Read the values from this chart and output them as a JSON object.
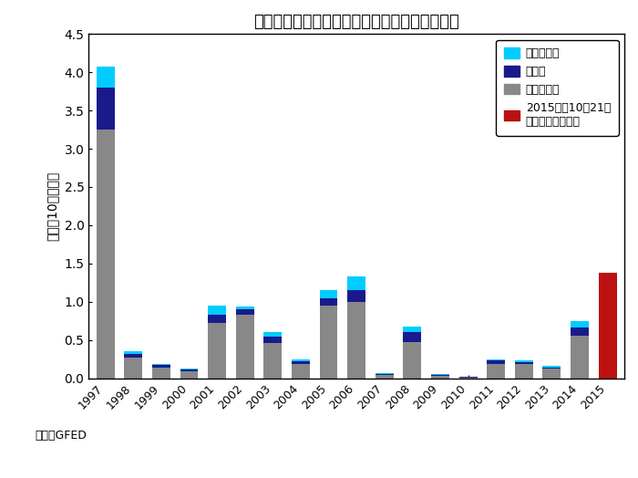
{
  "title": "インドネシアの火災による温室効果ガス排出量",
  "ylabel": "単位（10億トン）",
  "source_label": "出展：GFED",
  "years": [
    1997,
    1998,
    1999,
    2000,
    2001,
    2002,
    2003,
    2004,
    2005,
    2006,
    2007,
    2008,
    2009,
    2010,
    2011,
    2012,
    2013,
    2014,
    2015
  ],
  "co2": [
    3.25,
    0.27,
    0.14,
    0.09,
    0.72,
    0.83,
    0.46,
    0.19,
    0.95,
    1.0,
    0.04,
    0.47,
    0.03,
    0.01,
    0.19,
    0.18,
    0.12,
    0.56,
    0.0
  ],
  "methane": [
    0.55,
    0.05,
    0.03,
    0.02,
    0.11,
    0.07,
    0.08,
    0.03,
    0.1,
    0.15,
    0.01,
    0.13,
    0.01,
    0.005,
    0.04,
    0.03,
    0.02,
    0.1,
    0.0
  ],
  "n2o": [
    0.27,
    0.03,
    0.02,
    0.01,
    0.12,
    0.04,
    0.06,
    0.02,
    0.1,
    0.18,
    0.01,
    0.08,
    0.01,
    0.005,
    0.02,
    0.02,
    0.02,
    0.09,
    0.0
  ],
  "total_2015": 1.38,
  "co2_color": "#888888",
  "methane_color": "#1a1a8c",
  "n2o_color": "#00ccff",
  "color_2015": "#bb1111",
  "ylim": [
    0,
    4.5
  ],
  "yticks": [
    0.0,
    0.5,
    1.0,
    1.5,
    2.0,
    2.5,
    3.0,
    3.5,
    4.0,
    4.5
  ],
  "legend_n2o": "亜酸化窒素",
  "legend_methane": "メタン",
  "legend_co2": "二酸化炭素",
  "legend_2015": "2015年は10月21日\nまでの排出量合計",
  "bar_width": 0.65
}
